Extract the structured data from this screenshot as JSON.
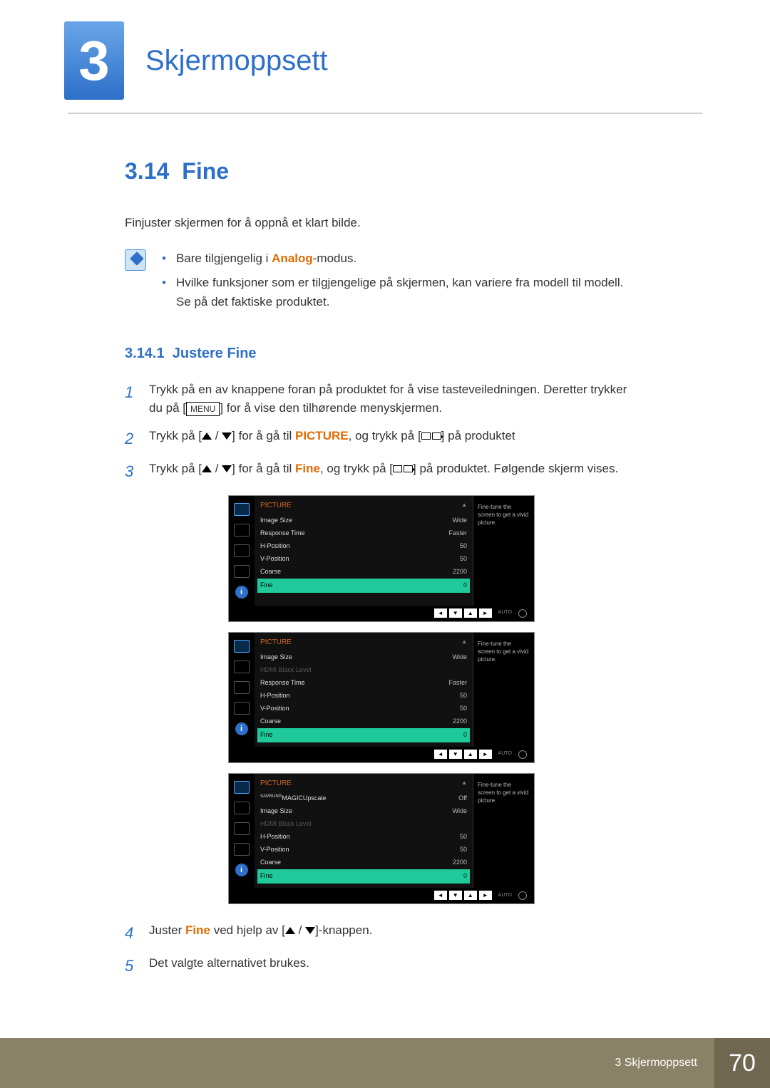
{
  "header": {
    "chapter_num": "3",
    "chapter_title": "Skjermoppsett"
  },
  "section": {
    "num": "3.14",
    "title": "Fine",
    "lead": "Finjuster skjermen for å oppnå et klart bilde.",
    "note1_pre": "Bare tilgjengelig i ",
    "note1_mode": "Analog",
    "note1_post": "-modus.",
    "note2": "Hvilke funksjoner som er tilgjengelige på skjermen, kan variere fra modell til modell. Se på det faktiske produktet."
  },
  "sub": {
    "num": "3.14.1",
    "title": "Justere Fine"
  },
  "steps": {
    "s1a": "Trykk på en av knappene foran på produktet for å vise tasteveiledningen. Deretter trykker du på [",
    "menu": "MENU",
    "s1b": "] for å vise den tilhørende menyskjermen.",
    "s2a": "Trykk på [",
    "s2b": "] for å gå til ",
    "kw_picture": "PICTURE",
    "s2c": ", og trykk på [",
    "s2d": "] på produktet",
    "s3a": "Trykk på [",
    "s3b": "] for å gå til ",
    "kw_fine": "Fine",
    "s3c": ", og trykk på [",
    "s3d": "] på produktet. Følgende skjerm vises.",
    "s4a": "Juster ",
    "s4b": " ved hjelp av [",
    "s4c": "]-knappen.",
    "s5": "Det valgte alternativet brukes."
  },
  "osd_common": {
    "title": "PICTURE",
    "hint": "Fine-tune the screen to get a vivid picture.",
    "auto": "AUTO",
    "labels": {
      "image_size": "Image Size",
      "response": "Response Time",
      "hpos": "H-Position",
      "vpos": "V-Position",
      "coarse": "Coarse",
      "fine": "Fine",
      "hdmi_black": "HDMI Black Level",
      "upscale_pre": "SAMSUNG",
      "upscale": "MAGICUpscale"
    },
    "values": {
      "wide": "Wide",
      "faster": "Faster",
      "fifty": "50",
      "coarse": "2200",
      "zero": "0",
      "off": "Off"
    }
  },
  "footer": {
    "text": "3 Skjermoppsett",
    "page": "70"
  }
}
